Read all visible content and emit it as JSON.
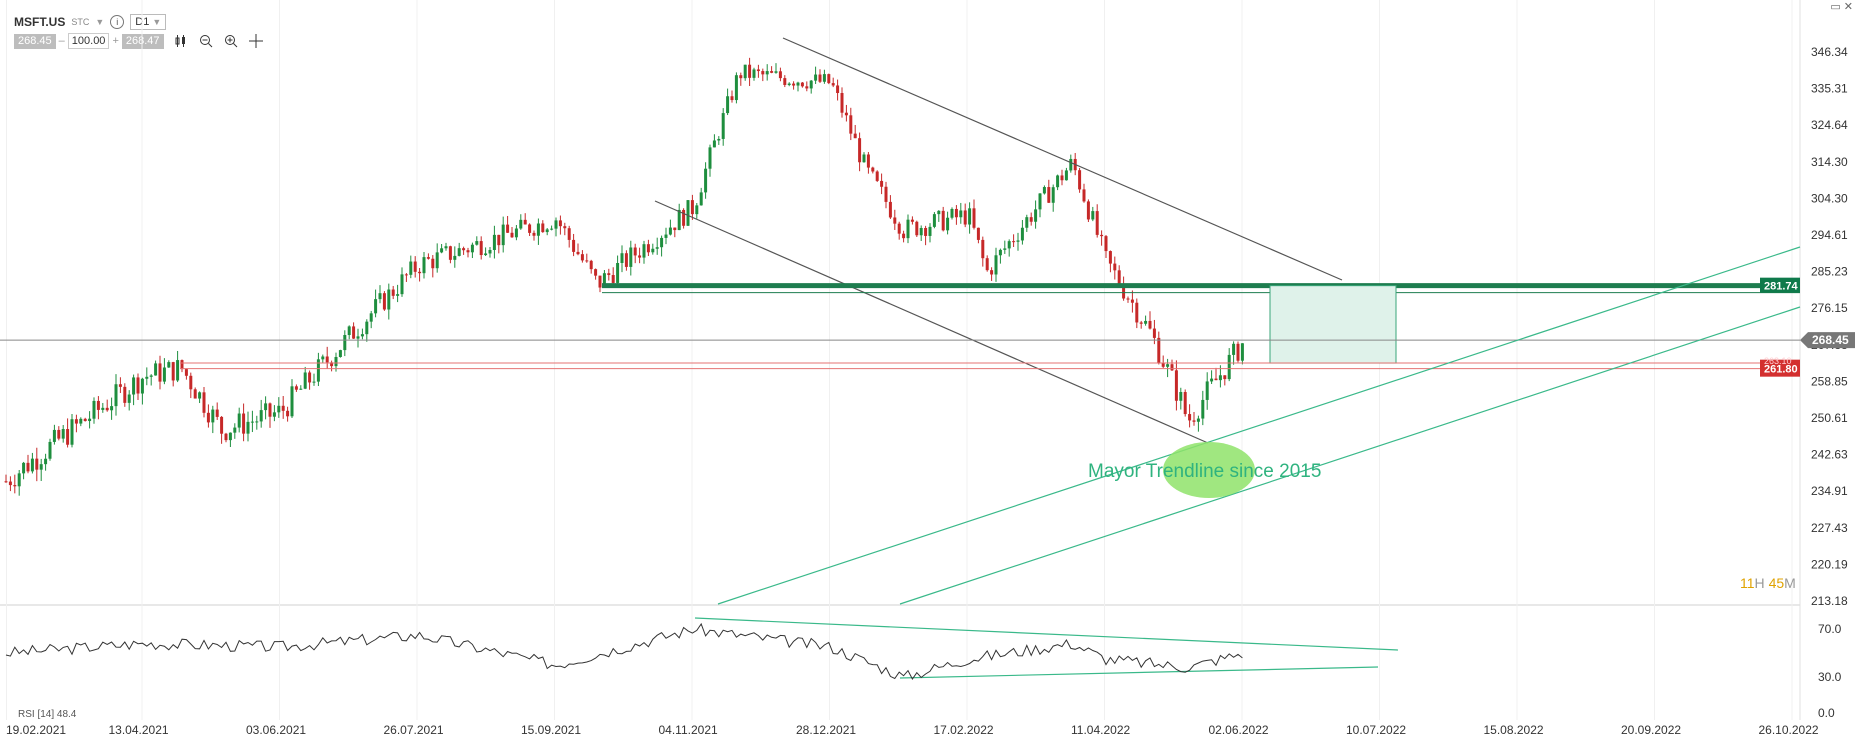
{
  "header": {
    "symbol": "MSFT.US",
    "type": "STC",
    "timeframe": "D1",
    "bid": "268.45",
    "volume": "100.00",
    "ask": "268.47",
    "minus": "–",
    "plus": "+"
  },
  "window_controls": {
    "restore": "▭",
    "close": "✕"
  },
  "chart_data": [
    {
      "type": "candlestick",
      "y_axis_ticks": [
        "346.34",
        "335.31",
        "324.64",
        "314.30",
        "304.30",
        "294.61",
        "285.23",
        "276.15",
        "267.33",
        "258.85",
        "250.61",
        "242.63",
        "234.91",
        "227.43",
        "220.19",
        "213.18"
      ],
      "x_axis_ticks": [
        "19.02.2021",
        "13.04.2021",
        "03.06.2021",
        "26.07.2021",
        "15.09.2021",
        "04.11.2021",
        "28.12.2021",
        "17.02.2022",
        "11.04.2022",
        "02.06.2022",
        "10.07.2022",
        "15.08.2022",
        "20.09.2022",
        "26.10.2022"
      ],
      "ylim": [
        213.18,
        346.34
      ],
      "current_price": "268.45",
      "level_green": "281.74",
      "level_red_top": "263.10",
      "level_red": "261.80",
      "countdown": {
        "hours": "11",
        "h": "H",
        "minutes": "45",
        "m": "M"
      },
      "annotation": "Mayor Trendline since 2015",
      "series": [
        {
          "x": [
            "19.02.2021",
            "13.04.2021",
            "27.04.2021",
            "12.05.2021",
            "03.06.2021",
            "26.07.2021",
            "15.09.2021",
            "30.09.2021",
            "04.11.2021",
            "22.11.2021",
            "28.12.2021",
            "10.01.2022",
            "24.01.2022",
            "17.02.2022",
            "24.02.2022",
            "29.03.2022",
            "11.04.2022",
            "28.04.2022",
            "09.05.2022",
            "12.05.2022",
            "02.06.2022"
          ],
          "values": [
            237,
            260,
            262,
            248,
            252,
            287,
            299,
            282,
            302,
            340,
            337,
            312,
            296,
            300,
            285,
            314,
            288,
            270,
            255,
            250,
            268
          ]
        }
      ]
    },
    {
      "type": "line",
      "label": "RSI [14] 48.4",
      "y_axis_ticks": [
        "70.0",
        "30.0",
        "0.0"
      ],
      "ylim": [
        0,
        100
      ],
      "series": [
        {
          "x": [
            "19.02.2021",
            "13.04.2021",
            "03.06.2021",
            "26.07.2021",
            "15.09.2021",
            "04.11.2021",
            "28.12.2021",
            "24.01.2022",
            "17.02.2022",
            "29.03.2022",
            "11.04.2022",
            "12.05.2022",
            "02.06.2022"
          ],
          "values": [
            50,
            58,
            55,
            65,
            40,
            70,
            55,
            30,
            45,
            58,
            45,
            38,
            50
          ]
        }
      ]
    }
  ]
}
